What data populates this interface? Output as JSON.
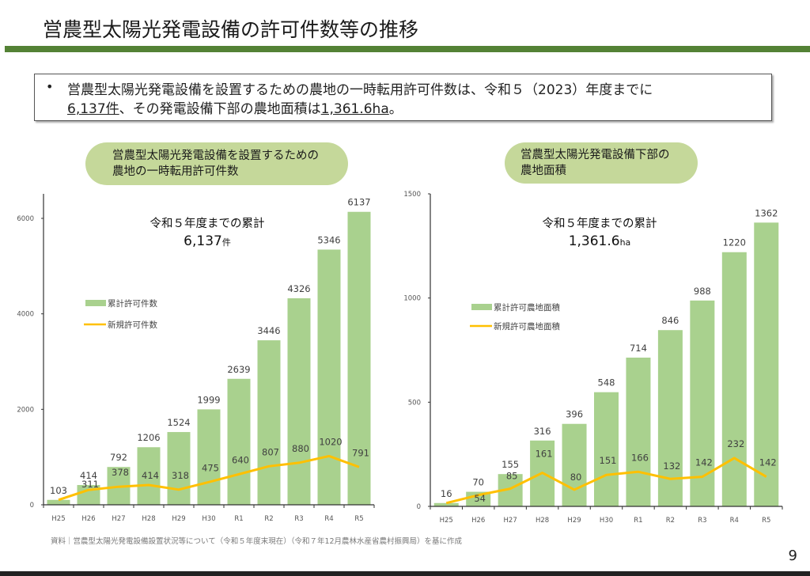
{
  "header": {
    "title": "営農型太陽光発電設備の許可件数等の推移",
    "accent_color": "#548235"
  },
  "summary": {
    "bullet": "•",
    "line1": "営農型太陽光発電設備を設置するための農地の一時転用許可件数は、令和５（2023）年度までに",
    "count": "6,137件",
    "middle": "、その発電設備下部の農地面積は",
    "area": "1,361.6ha",
    "end": "。"
  },
  "chart_data": [
    {
      "type": "bar",
      "title_line1": "営農型太陽光発電設備を設置するための",
      "title_line2": "農地の一時転用許可件数",
      "annotation_line1": "令和５年度までの累計",
      "annotation_value": "6,137",
      "annotation_unit": "件",
      "categories": [
        "H25",
        "H26",
        "H27",
        "H28",
        "H29",
        "H30",
        "R1",
        "R2",
        "R3",
        "R4",
        "R5"
      ],
      "ylim": [
        0,
        6500
      ],
      "yticks": [
        0,
        2000,
        4000,
        6000
      ],
      "series": [
        {
          "name": "累計許可件数",
          "kind": "bar",
          "color": "#a9d18e",
          "values": [
            103,
            414,
            792,
            1206,
            1524,
            1999,
            2639,
            3446,
            4326,
            5346,
            6137
          ]
        },
        {
          "name": "新規許可件数",
          "kind": "line",
          "color": "#ffc000",
          "values": [
            103,
            311,
            378,
            414,
            318,
            475,
            640,
            807,
            880,
            1020,
            791
          ]
        }
      ],
      "legend": "upper-left"
    },
    {
      "type": "bar",
      "title_line1": "営農型太陽光発電設備下部の",
      "title_line2": "農地面積",
      "annotation_line1": "令和５年度までの累計",
      "annotation_value": "1,361.6",
      "annotation_unit": "ha",
      "categories": [
        "H25",
        "H26",
        "H27",
        "H28",
        "H29",
        "H30",
        "R1",
        "R2",
        "R3",
        "R4",
        "R5"
      ],
      "ylim": [
        0,
        1500
      ],
      "yticks": [
        0,
        500,
        1000,
        1500
      ],
      "series": [
        {
          "name": "累計許可農地面積",
          "kind": "bar",
          "color": "#a9d18e",
          "values": [
            16,
            70,
            155,
            316,
            396,
            548,
            714,
            846,
            988,
            1220,
            1362
          ]
        },
        {
          "name": "新規許可農地面積",
          "kind": "line",
          "color": "#ffc000",
          "values": [
            16,
            54,
            85,
            161,
            80,
            151,
            166,
            132,
            142,
            232,
            142
          ]
        }
      ],
      "legend": "upper-left"
    }
  ],
  "footer": {
    "source": "資料｜営農型太陽光発電設備設置状況等について（令和５年度末現在）（令和７年12月農林水産省農村振興局）を基に作成",
    "page_number": "9"
  }
}
